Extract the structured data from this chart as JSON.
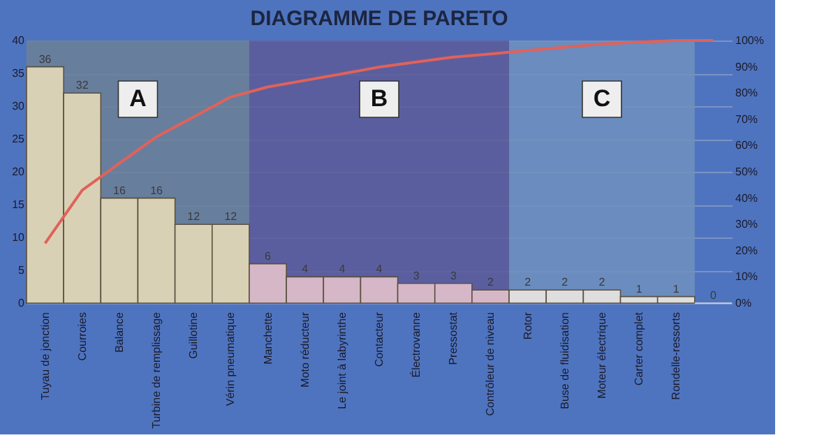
{
  "chart_data": {
    "type": "bar",
    "title": "DIAGRAMME DE PARETO",
    "categories": [
      "Tuyau de jonction",
      "Courroies",
      "Balance",
      "Turbine de remplissage",
      "Guillotine",
      "Vérin pneumatique",
      "Manchette",
      "Moto réducteur",
      "Le joint à labyrinthe",
      "Contacteur",
      "Électrovanne",
      "Pressostat",
      "Contrôleur de niveau",
      "Rotor",
      "Buse de fluidisation",
      "Moteur électrique",
      "Carter complet",
      "Rondelle-ressorts",
      null
    ],
    "series": [
      {
        "values": [
          36,
          32,
          16,
          16,
          12,
          12,
          6,
          4,
          4,
          4,
          3,
          3,
          2,
          2,
          2,
          2,
          1,
          1,
          0
        ],
        "value_labels": [
          "36",
          "32",
          "16",
          "16",
          "12",
          "12",
          "6",
          "4",
          "4",
          "4",
          "3",
          "3",
          "2",
          "2",
          "2",
          "2",
          "1",
          "1",
          "0"
        ],
        "colors": [
          "#d9d1b5",
          "#d9d1b5",
          "#d9d1b5",
          "#d9d1b5",
          "#d9d1b5",
          "#d9d1b5",
          "#d6b7c8",
          "#d6b7c8",
          "#d6b7c8",
          "#d6b7c8",
          "#d6b7c8",
          "#d6b7c8",
          "#d6b7c8",
          "#dedede",
          "#dedede",
          "#dedede",
          "#dedede",
          "#dedede",
          "#dedede"
        ]
      },
      {
        "type": "line",
        "axis": "y2",
        "color": "#e0625a",
        "values": [
          22.8,
          43.0,
          53.2,
          63.3,
          70.9,
          78.5,
          82.3,
          84.8,
          87.3,
          89.9,
          91.8,
          93.7,
          94.9,
          96.2,
          97.5,
          98.7,
          99.4,
          100,
          100
        ]
      }
    ],
    "ylim": [
      0,
      40
    ],
    "yticks": [
      0,
      5,
      10,
      15,
      20,
      25,
      30,
      35,
      40
    ],
    "y2lim": [
      0,
      100
    ],
    "y2ticks": [
      {
        "value": 0,
        "label": "0%"
      },
      {
        "value": 10,
        "label": "10%"
      },
      {
        "value": 20,
        "label": "20%"
      },
      {
        "value": 30,
        "label": "30%"
      },
      {
        "value": 40,
        "label": "40%"
      },
      {
        "value": 50,
        "label": "50%"
      },
      {
        "value": 60,
        "label": "60%"
      },
      {
        "value": 70,
        "label": "70%"
      },
      {
        "value": 80,
        "label": "80%"
      },
      {
        "value": 90,
        "label": "90%"
      },
      {
        "value": 100,
        "label": "100%"
      }
    ],
    "bands": [
      {
        "axis": "x",
        "from": "Tuyau de jonction",
        "to": "Vérin pneumatique",
        "label": "A",
        "color": "#6c8097"
      },
      {
        "axis": "x",
        "from": "Manchette",
        "to": "Contrôleur de niveau",
        "label": "B",
        "color": "#5d5b98"
      },
      {
        "axis": "x",
        "from": "Rotor",
        "to": "Rondelle-ressorts",
        "label": "C",
        "color": "#7090bd"
      }
    ],
    "grid": "y"
  }
}
